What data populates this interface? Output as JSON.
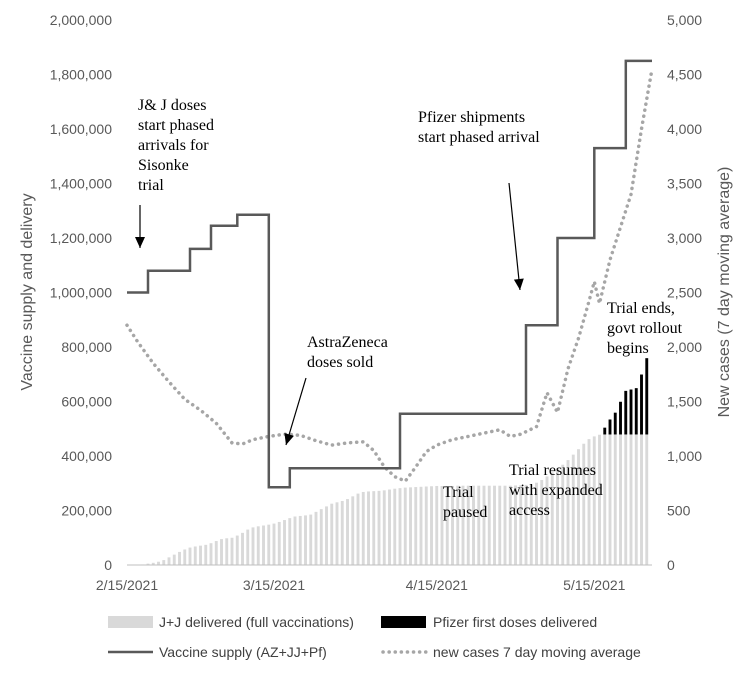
{
  "chart_data": {
    "type": "bar+line",
    "title": "",
    "ylabel_left": "Vaccine supply and delivery",
    "ylabel_right": "New cases (7 day moving average)",
    "ylim_left": [
      0,
      2000000
    ],
    "ylim_right": [
      0,
      5000
    ],
    "yticks_left": [
      "0",
      "200,000",
      "400,000",
      "600,000",
      "800,000",
      "1,000,000",
      "1,200,000",
      "1,400,000",
      "1,600,000",
      "1,800,000",
      "2,000,000"
    ],
    "yticks_right": [
      "0",
      "500",
      "1,000",
      "1,500",
      "2,000",
      "2,500",
      "3,000",
      "3,500",
      "4,000",
      "4,500",
      "5,000"
    ],
    "x_start": "2021-02-15",
    "x_end": "2021-05-26",
    "xticks": [
      {
        "date": "2021-02-15",
        "label": "2/15/2021"
      },
      {
        "date": "2021-03-15",
        "label": "3/15/2021"
      },
      {
        "date": "2021-04-15",
        "label": "4/15/2021"
      },
      {
        "date": "2021-05-15",
        "label": "5/15/2021"
      }
    ],
    "grid": false,
    "legend_position": "bottom",
    "series": [
      {
        "name": "J+J delivered (full vaccinations)",
        "kind": "bar",
        "color": "#d9d9d9",
        "points": [
          [
            "2021-02-17",
            0
          ],
          [
            "2021-02-18",
            2000
          ],
          [
            "2021-02-19",
            5000
          ],
          [
            "2021-02-20",
            8000
          ],
          [
            "2021-02-21",
            12000
          ],
          [
            "2021-02-22",
            18000
          ],
          [
            "2021-02-23",
            28000
          ],
          [
            "2021-02-24",
            38000
          ],
          [
            "2021-02-25",
            48000
          ],
          [
            "2021-02-26",
            57000
          ],
          [
            "2021-02-27",
            64000
          ],
          [
            "2021-02-28",
            68000
          ],
          [
            "2021-03-01",
            71000
          ],
          [
            "2021-03-02",
            74000
          ],
          [
            "2021-03-03",
            80000
          ],
          [
            "2021-03-04",
            88000
          ],
          [
            "2021-03-05",
            95000
          ],
          [
            "2021-03-06",
            98000
          ],
          [
            "2021-03-07",
            100000
          ],
          [
            "2021-03-08",
            108000
          ],
          [
            "2021-03-09",
            118000
          ],
          [
            "2021-03-10",
            130000
          ],
          [
            "2021-03-11",
            138000
          ],
          [
            "2021-03-12",
            142000
          ],
          [
            "2021-03-13",
            145000
          ],
          [
            "2021-03-14",
            148000
          ],
          [
            "2021-03-15",
            152000
          ],
          [
            "2021-03-16",
            158000
          ],
          [
            "2021-03-17",
            165000
          ],
          [
            "2021-03-18",
            172000
          ],
          [
            "2021-03-19",
            178000
          ],
          [
            "2021-03-20",
            180000
          ],
          [
            "2021-03-21",
            182000
          ],
          [
            "2021-03-22",
            185000
          ],
          [
            "2021-03-23",
            195000
          ],
          [
            "2021-03-24",
            205000
          ],
          [
            "2021-03-25",
            215000
          ],
          [
            "2021-03-26",
            225000
          ],
          [
            "2021-03-27",
            230000
          ],
          [
            "2021-03-28",
            235000
          ],
          [
            "2021-03-29",
            242000
          ],
          [
            "2021-03-30",
            252000
          ],
          [
            "2021-03-31",
            262000
          ],
          [
            "2021-04-01",
            268000
          ],
          [
            "2021-04-02",
            270000
          ],
          [
            "2021-04-03",
            271000
          ],
          [
            "2021-04-04",
            272000
          ],
          [
            "2021-04-05",
            274000
          ],
          [
            "2021-04-06",
            277000
          ],
          [
            "2021-04-07",
            280000
          ],
          [
            "2021-04-08",
            282000
          ],
          [
            "2021-04-09",
            284000
          ],
          [
            "2021-04-10",
            285000
          ],
          [
            "2021-04-11",
            286000
          ],
          [
            "2021-04-12",
            287000
          ],
          [
            "2021-04-13",
            288000
          ],
          [
            "2021-04-14",
            289000
          ],
          [
            "2021-04-15",
            290000
          ],
          [
            "2021-04-16",
            290000
          ],
          [
            "2021-04-17",
            290000
          ],
          [
            "2021-04-18",
            290000
          ],
          [
            "2021-04-19",
            291000
          ],
          [
            "2021-04-20",
            291000
          ],
          [
            "2021-04-21",
            291000
          ],
          [
            "2021-04-22",
            291000
          ],
          [
            "2021-04-23",
            291000
          ],
          [
            "2021-04-24",
            291000
          ],
          [
            "2021-04-25",
            291000
          ],
          [
            "2021-04-26",
            291000
          ],
          [
            "2021-04-27",
            291000
          ],
          [
            "2021-04-28",
            291000
          ],
          [
            "2021-04-29",
            291000
          ],
          [
            "2021-04-30",
            292000
          ],
          [
            "2021-05-01",
            293000
          ],
          [
            "2021-05-02",
            294000
          ],
          [
            "2021-05-03",
            296000
          ],
          [
            "2021-05-04",
            302000
          ],
          [
            "2021-05-05",
            312000
          ],
          [
            "2021-05-06",
            325000
          ],
          [
            "2021-05-07",
            340000
          ],
          [
            "2021-05-08",
            355000
          ],
          [
            "2021-05-09",
            368000
          ],
          [
            "2021-05-10",
            385000
          ],
          [
            "2021-05-11",
            405000
          ],
          [
            "2021-05-12",
            425000
          ],
          [
            "2021-05-13",
            445000
          ],
          [
            "2021-05-14",
            462000
          ],
          [
            "2021-05-15",
            472000
          ],
          [
            "2021-05-16",
            478000
          ],
          [
            "2021-05-17",
            479000
          ],
          [
            "2021-05-18",
            479000
          ],
          [
            "2021-05-19",
            479000
          ],
          [
            "2021-05-20",
            479000
          ],
          [
            "2021-05-21",
            479000
          ],
          [
            "2021-05-22",
            479000
          ],
          [
            "2021-05-23",
            479000
          ],
          [
            "2021-05-24",
            479000
          ],
          [
            "2021-05-25",
            479000
          ]
        ]
      },
      {
        "name": "Pfizer first doses delivered",
        "kind": "bar",
        "stacked_on": "J+J delivered (full vaccinations)",
        "color": "#000000",
        "points": [
          [
            "2021-05-17",
            25000
          ],
          [
            "2021-05-18",
            55000
          ],
          [
            "2021-05-19",
            80000
          ],
          [
            "2021-05-20",
            120000
          ],
          [
            "2021-05-21",
            160000
          ],
          [
            "2021-05-22",
            165000
          ],
          [
            "2021-05-23",
            170000
          ],
          [
            "2021-05-24",
            220000
          ],
          [
            "2021-05-25",
            280000
          ]
        ]
      },
      {
        "name": "Vaccine supply (AZ+JJ+Pf)",
        "kind": "step-line",
        "color": "#595959",
        "points": [
          [
            "2021-02-15",
            1000000
          ],
          [
            "2021-02-19",
            1080000
          ],
          [
            "2021-02-27",
            1160000
          ],
          [
            "2021-03-03",
            1245000
          ],
          [
            "2021-03-08",
            1285000
          ],
          [
            "2021-03-11",
            1285000
          ],
          [
            "2021-03-14",
            285000
          ],
          [
            "2021-03-18",
            355000
          ],
          [
            "2021-04-08",
            555000
          ],
          [
            "2021-05-02",
            880000
          ],
          [
            "2021-05-08",
            1200000
          ],
          [
            "2021-05-15",
            1530000
          ],
          [
            "2021-05-21",
            1850000
          ],
          [
            "2021-05-26",
            1850000
          ]
        ]
      },
      {
        "name": "new cases 7 day moving average",
        "kind": "line",
        "axis": "right",
        "style": "dotted",
        "color": "#a6a6a6",
        "points": [
          [
            "2021-02-15",
            2200
          ],
          [
            "2021-02-17",
            2050
          ],
          [
            "2021-02-20",
            1850
          ],
          [
            "2021-02-23",
            1680
          ],
          [
            "2021-02-26",
            1520
          ],
          [
            "2021-03-01",
            1420
          ],
          [
            "2021-03-04",
            1300
          ],
          [
            "2021-03-07",
            1120
          ],
          [
            "2021-03-09",
            1110
          ],
          [
            "2021-03-11",
            1150
          ],
          [
            "2021-03-14",
            1180
          ],
          [
            "2021-03-17",
            1200
          ],
          [
            "2021-03-20",
            1190
          ],
          [
            "2021-03-23",
            1140
          ],
          [
            "2021-03-26",
            1100
          ],
          [
            "2021-03-29",
            1120
          ],
          [
            "2021-04-01",
            1130
          ],
          [
            "2021-04-03",
            1050
          ],
          [
            "2021-04-05",
            900
          ],
          [
            "2021-04-07",
            810
          ],
          [
            "2021-04-09",
            770
          ],
          [
            "2021-04-11",
            900
          ],
          [
            "2021-04-13",
            1040
          ],
          [
            "2021-04-15",
            1100
          ],
          [
            "2021-04-18",
            1150
          ],
          [
            "2021-04-21",
            1180
          ],
          [
            "2021-04-24",
            1210
          ],
          [
            "2021-04-27",
            1240
          ],
          [
            "2021-04-29",
            1180
          ],
          [
            "2021-05-01",
            1200
          ],
          [
            "2021-05-04",
            1270
          ],
          [
            "2021-05-06",
            1580
          ],
          [
            "2021-05-08",
            1400
          ],
          [
            "2021-05-10",
            1800
          ],
          [
            "2021-05-12",
            2080
          ],
          [
            "2021-05-14",
            2420
          ],
          [
            "2021-05-15",
            2600
          ],
          [
            "2021-05-16",
            2400
          ],
          [
            "2021-05-18",
            2800
          ],
          [
            "2021-05-20",
            3100
          ],
          [
            "2021-05-22",
            3400
          ],
          [
            "2021-05-24",
            4000
          ],
          [
            "2021-05-26",
            4550
          ]
        ]
      }
    ],
    "annotations": [
      {
        "lines": [
          "J& J doses",
          "start phased",
          "arrivals for",
          "Sisonke",
          "trial"
        ],
        "arrow": true
      },
      {
        "lines": [
          "AstraZeneca",
          "doses sold"
        ],
        "arrow": true
      },
      {
        "lines": [
          "Pfizer shipments",
          "start phased arrival"
        ],
        "arrow": true
      },
      {
        "lines": [
          "Trial",
          "paused"
        ],
        "arrow": false
      },
      {
        "lines": [
          "Trial resumes",
          "with expanded",
          "access"
        ],
        "arrow": false
      },
      {
        "lines": [
          "Trial ends,",
          "govt rollout",
          "begins"
        ],
        "arrow": false
      }
    ]
  }
}
